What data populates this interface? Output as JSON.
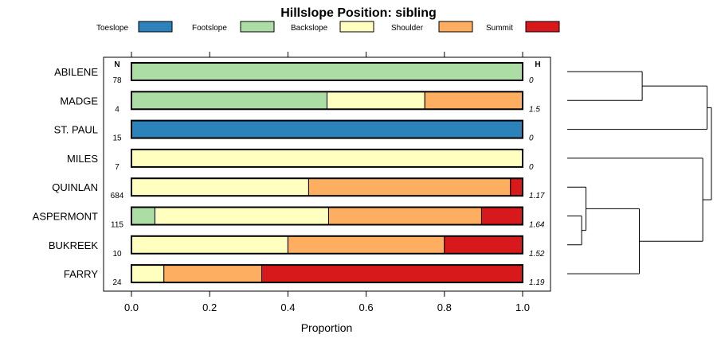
{
  "chart_data": {
    "type": "bar",
    "stacked": true,
    "orientation": "horizontal",
    "title": "Hillslope Position: sibling",
    "xlabel": "Proportion",
    "xlim": [
      0,
      1
    ],
    "xticks": [
      "0.0",
      "0.2",
      "0.4",
      "0.6",
      "0.8",
      "1.0"
    ],
    "n_header": "N",
    "h_header": "H",
    "legend_position": "top",
    "categories": [
      "ABILENE",
      "MADGE",
      "ST. PAUL",
      "MILES",
      "QUINLAN",
      "ASPERMONT",
      "BUKREEK",
      "FARRY"
    ],
    "n": [
      "78",
      "4",
      "15",
      "7",
      "684",
      "115",
      "10",
      "24"
    ],
    "h": [
      "0",
      "1.5",
      "0",
      "0",
      "1.17",
      "1.64",
      "1.52",
      "1.19"
    ],
    "series": [
      {
        "name": "Toeslope",
        "color": "#2B83BA",
        "values": [
          0,
          0,
          1,
          0,
          0,
          0,
          0,
          0
        ]
      },
      {
        "name": "Footslope",
        "color": "#ABDDA4",
        "values": [
          1,
          0.5,
          0,
          0,
          0,
          0.06,
          0,
          0
        ]
      },
      {
        "name": "Backslope",
        "color": "#FFFFBF",
        "values": [
          0,
          0.25,
          0,
          1,
          0.453,
          0.444,
          0.4,
          0.083
        ]
      },
      {
        "name": "Shoulder",
        "color": "#FDAE61",
        "values": [
          0,
          0.25,
          0,
          0,
          0.516,
          0.391,
          0.4,
          0.25
        ]
      },
      {
        "name": "Summit",
        "color": "#D7191C",
        "values": [
          0,
          0,
          0,
          0,
          0.031,
          0.105,
          0.2,
          0.667
        ]
      }
    ],
    "dendrogram": {
      "merges": [
        {
          "a": "ABILENE",
          "b": "MADGE",
          "height": 0.52
        },
        {
          "a": "BUKREEK",
          "b": "ASPERMONT",
          "height": 0.1
        },
        {
          "a": "m2",
          "b": "QUINLAN",
          "height": 0.13
        },
        {
          "a": "m3",
          "b": "FARRY",
          "height": 0.5
        },
        {
          "a": "MILES",
          "b": "m4",
          "height": 0.94
        },
        {
          "a": "m1",
          "b": "ST. PAUL",
          "height": 0.97
        },
        {
          "a": "m6",
          "b": "m5",
          "height": 1.0
        }
      ]
    }
  }
}
